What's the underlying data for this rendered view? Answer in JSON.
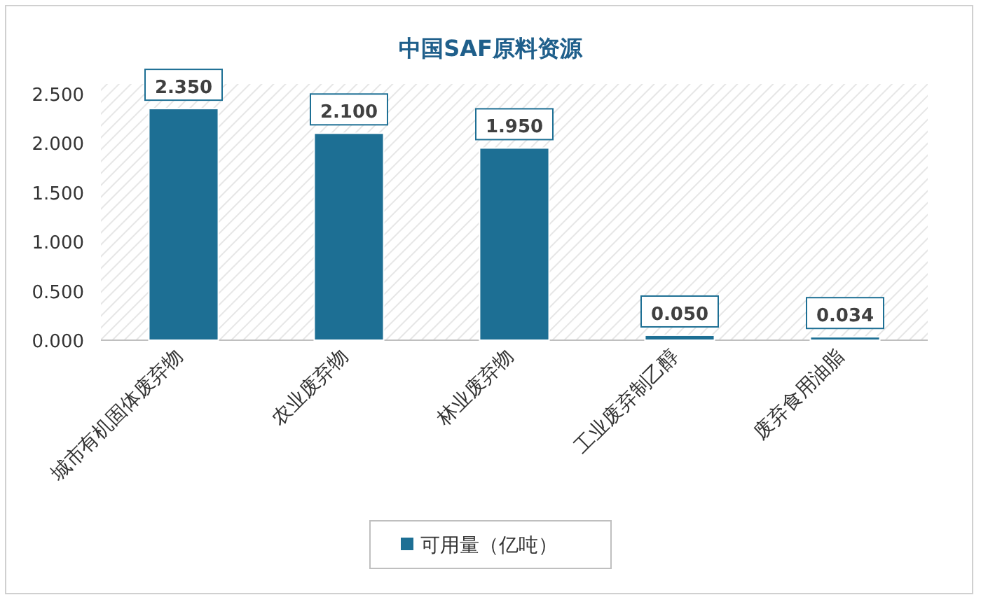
{
  "chart_data": {
    "type": "bar",
    "title": "中国SAF原料资源",
    "categories": [
      "城市有机固体废弃物",
      "农业废弃物",
      "林业废弃物",
      "工业废弃制乙醇",
      "废弃食用油脂"
    ],
    "series": [
      {
        "name": "可用量（亿吨）",
        "color": "#1d6f94",
        "values": [
          2.35,
          2.1,
          1.95,
          0.05,
          0.034
        ],
        "value_labels": [
          "2.350",
          "2.100",
          "1.950",
          "0.050",
          "0.034"
        ]
      }
    ],
    "ylim": [
      0,
      2.5
    ],
    "yticks": [
      {
        "value": 0,
        "label": "0.000"
      },
      {
        "value": 0.5,
        "label": "0.500"
      },
      {
        "value": 1,
        "label": "1.000"
      },
      {
        "value": 1.5,
        "label": "1.500"
      },
      {
        "value": 2,
        "label": "2.000"
      },
      {
        "value": 2.5,
        "label": "2.500"
      }
    ],
    "legend": "bottom"
  }
}
